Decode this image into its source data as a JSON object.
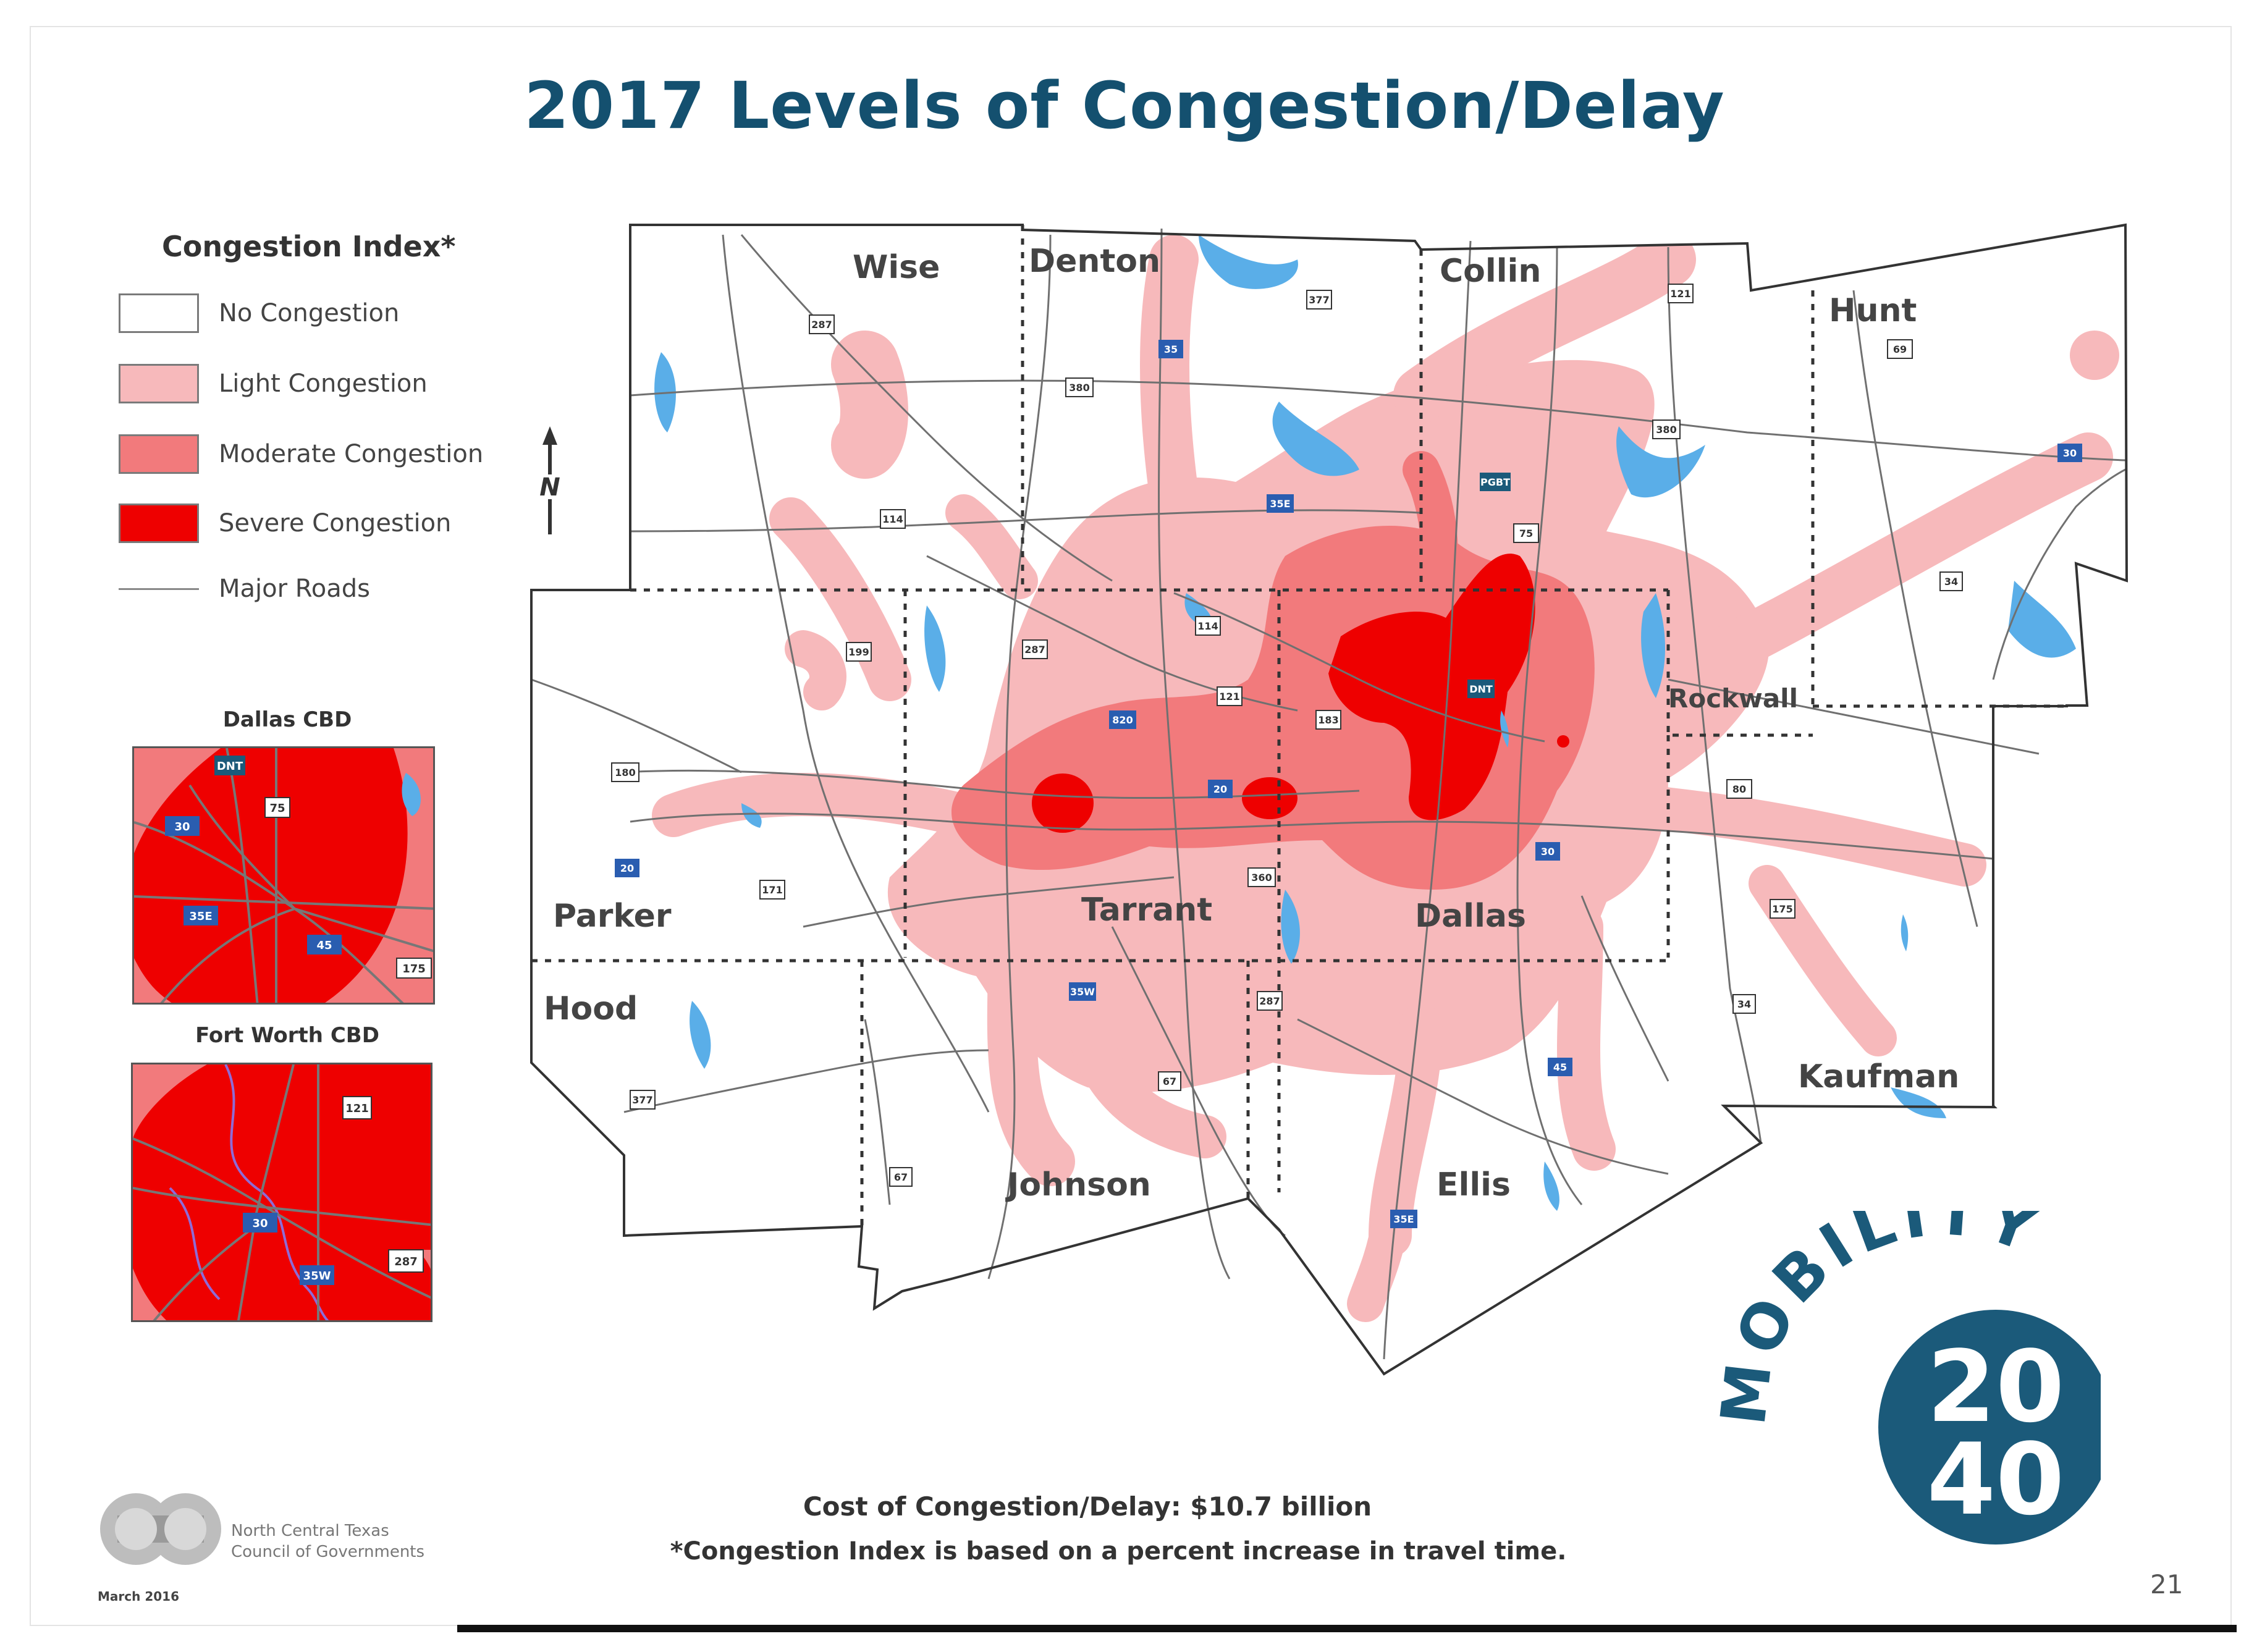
{
  "title": "2017 Levels of Congestion/Delay",
  "legend": {
    "title": "Congestion Index*",
    "items": [
      {
        "label": "No Congestion",
        "color": "#ffffff"
      },
      {
        "label": "Light Congestion",
        "color": "#f7b9bb"
      },
      {
        "label": "Moderate Congestion",
        "color": "#f27a7c"
      },
      {
        "label": "Severe Congestion",
        "color": "#ee0000"
      },
      {
        "label": "Major Roads",
        "color": "#888888"
      }
    ]
  },
  "north_arrow": "N",
  "insets": {
    "dallas_cbd": {
      "title": "Dallas CBD",
      "shields": [
        "DNT",
        "75",
        "30",
        "35E",
        "45",
        "175"
      ]
    },
    "fort_worth_cbd": {
      "title": "Fort Worth CBD",
      "shields": [
        "121",
        "30",
        "35W",
        "287"
      ]
    }
  },
  "counties": [
    "Wise",
    "Denton",
    "Collin",
    "Hunt",
    "Rockwall",
    "Parker",
    "Tarrant",
    "Dallas",
    "Hood",
    "Johnson",
    "Ellis",
    "Kaufman"
  ],
  "map_shields": [
    "287",
    "377",
    "121",
    "69",
    "380",
    "35",
    "380",
    "114",
    "35E",
    "30",
    "75",
    "34",
    "287",
    "199",
    "114",
    "121",
    "183",
    "820",
    "20",
    "30",
    "80",
    "180",
    "171",
    "360",
    "175",
    "67",
    "35W",
    "287",
    "45",
    "20",
    "35E",
    "377",
    "67",
    "34",
    "DNT",
    "PGBT"
  ],
  "cost_text": "Cost of Congestion/Delay: $10.7 billion",
  "footnote": "*Congestion Index is based on a percent increase in travel time.",
  "page_number": "21",
  "org": {
    "line1": "North Central Texas",
    "line2": "Council of Governments",
    "date": "March 2016"
  },
  "logo": {
    "word": "MOBILITY",
    "year_top": "20",
    "year_bottom": "40",
    "color": "#1b5a7a"
  },
  "colors": {
    "title": "#14506f",
    "water": "#5aaee8",
    "light": "#f7b9bb",
    "moderate": "#f27a7c",
    "severe": "#ee0000"
  }
}
